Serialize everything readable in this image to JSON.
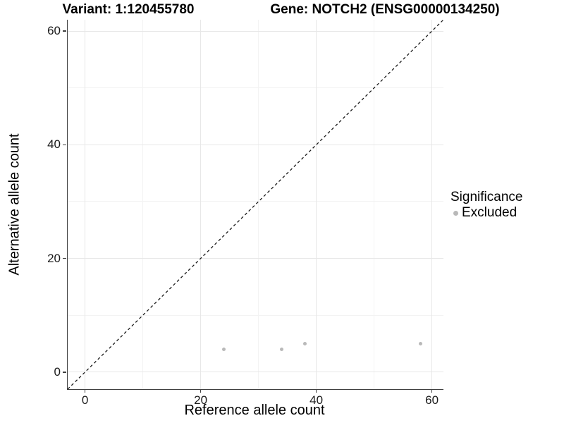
{
  "titles": {
    "variant": "Variant: 1:120455780",
    "gene": "Gene: NOTCH2 (ENSG00000134250)"
  },
  "axes": {
    "x_label": "Reference allele count",
    "y_label": "Alternative allele count"
  },
  "legend": {
    "title": "Significance",
    "items": [
      {
        "label": "Excluded",
        "color": "#b9b9b9"
      }
    ]
  },
  "colors": {
    "point": "#b9b9b9",
    "grid_major": "#e7e7e7",
    "grid_minor": "#f3f3f3",
    "axis_line": "#404040",
    "tick": "#404040",
    "tick_label": "#1a1a1a",
    "dashed_line": "#1a1a1a",
    "background": "#ffffff"
  },
  "chart_data": {
    "type": "scatter",
    "title": "Variant: 1:120455780 | Gene: NOTCH2 (ENSG00000134250)",
    "xlabel": "Reference allele count",
    "ylabel": "Alternative allele count",
    "xlim": [
      -3,
      62
    ],
    "ylim": [
      -3,
      62
    ],
    "x_ticks": [
      0,
      20,
      40,
      60
    ],
    "y_ticks": [
      0,
      20,
      40,
      60
    ],
    "x_minor_ticks": [
      10,
      30,
      50
    ],
    "y_minor_ticks": [
      10,
      30,
      50
    ],
    "grid": true,
    "legend_position": "right",
    "legend_title": "Significance",
    "series": [
      {
        "name": "Excluded",
        "color": "#b9b9b9",
        "marker": "circle",
        "points": [
          {
            "x": 24,
            "y": 4
          },
          {
            "x": 34,
            "y": 4
          },
          {
            "x": 38,
            "y": 5
          },
          {
            "x": 58,
            "y": 5
          }
        ]
      }
    ],
    "reference_line": {
      "type": "identity",
      "slope": 1,
      "intercept": 0,
      "style": "dashed",
      "from": [
        -3,
        -3
      ],
      "to": [
        62,
        62
      ]
    }
  }
}
